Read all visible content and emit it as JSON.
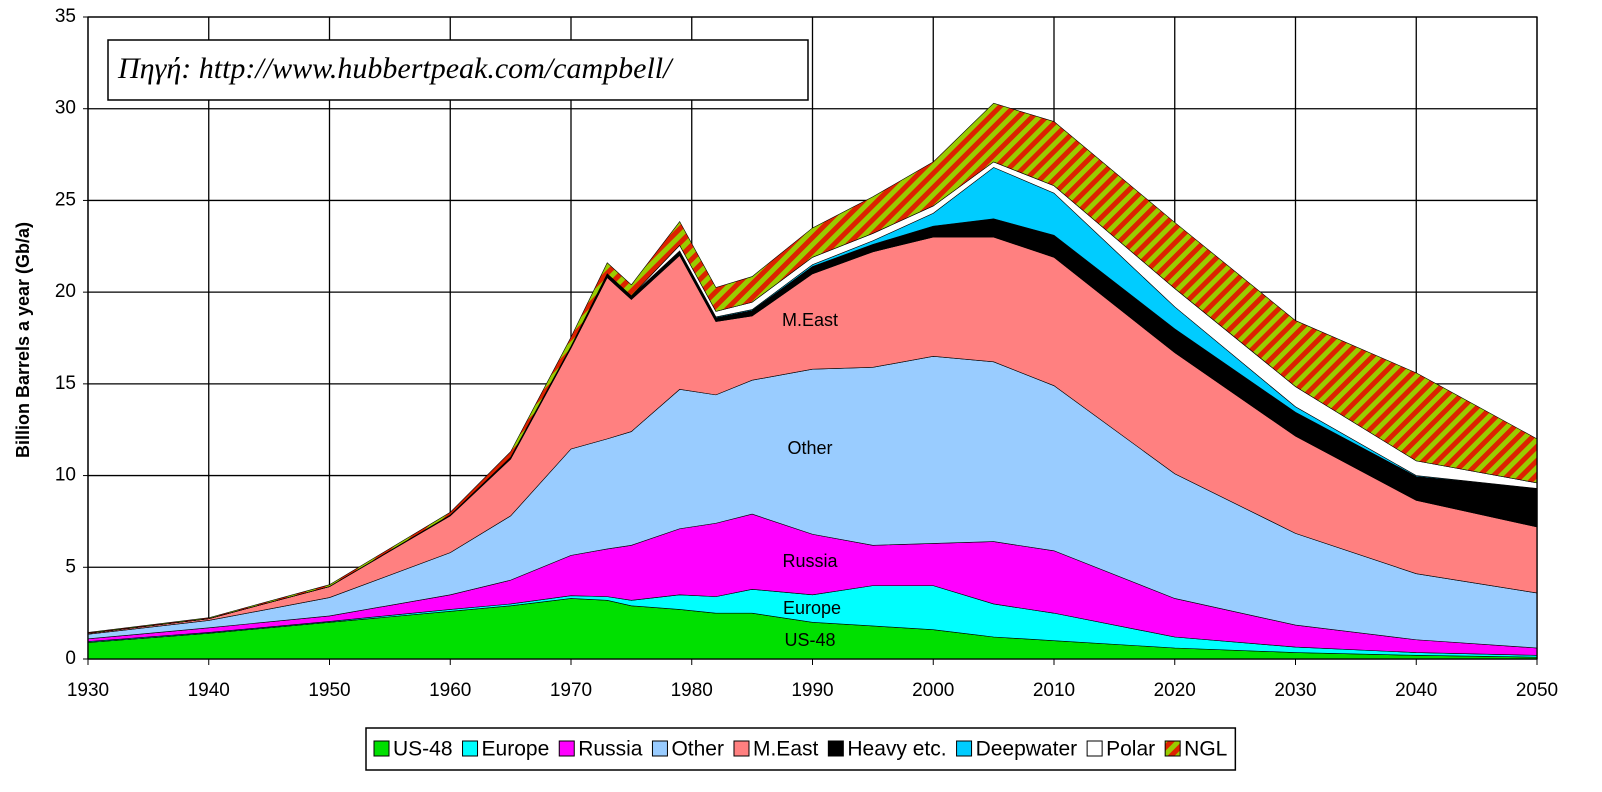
{
  "chart_data": {
    "type": "stacked-area",
    "annotation": "Πηγή: http://www.hubbertpeak.com/campbell/",
    "y_label": "Billion Barrels a year (Gb/a)",
    "x": [
      1930,
      1940,
      1950,
      1960,
      1965,
      1970,
      1973,
      1975,
      1979,
      1982,
      1985,
      1990,
      1995,
      2000,
      2005,
      2010,
      2020,
      2030,
      2040,
      2050
    ],
    "series": [
      {
        "name": "US-48",
        "color": "#00e000",
        "values": [
          0.9,
          1.4,
          2.0,
          2.6,
          2.9,
          3.3,
          3.2,
          2.9,
          2.7,
          2.5,
          2.5,
          2.0,
          1.8,
          1.6,
          1.2,
          1.0,
          0.6,
          0.35,
          0.2,
          0.1
        ]
      },
      {
        "name": "Europe",
        "color": "#00ffff",
        "values": [
          0.05,
          0.05,
          0.05,
          0.1,
          0.1,
          0.15,
          0.2,
          0.3,
          0.8,
          0.9,
          1.3,
          1.5,
          2.2,
          2.4,
          1.8,
          1.5,
          0.6,
          0.3,
          0.15,
          0.1
        ]
      },
      {
        "name": "Russia",
        "color": "#ff00ff",
        "values": [
          0.15,
          0.25,
          0.3,
          0.8,
          1.3,
          2.2,
          2.6,
          3.0,
          3.6,
          4.0,
          4.1,
          3.3,
          2.2,
          2.3,
          3.4,
          3.4,
          2.1,
          1.2,
          0.7,
          0.4
        ]
      },
      {
        "name": "Other",
        "color": "#99ccff",
        "values": [
          0.25,
          0.4,
          1.0,
          2.3,
          3.5,
          5.8,
          6.0,
          6.2,
          7.6,
          7.0,
          7.3,
          9.0,
          9.7,
          10.2,
          9.8,
          9.0,
          6.8,
          5.0,
          3.6,
          3.0
        ]
      },
      {
        "name": "M.East",
        "color": "#ff8080",
        "values": [
          0.05,
          0.1,
          0.6,
          2.0,
          3.1,
          5.5,
          8.8,
          7.2,
          7.3,
          4.0,
          3.5,
          5.2,
          6.3,
          6.5,
          6.8,
          7.0,
          6.6,
          5.3,
          4.0,
          3.6
        ]
      },
      {
        "name": "Heavy etc.",
        "color": "#000000",
        "values": [
          0,
          0,
          0,
          0.05,
          0.1,
          0.1,
          0.2,
          0.2,
          0.2,
          0.2,
          0.3,
          0.4,
          0.4,
          0.6,
          1.0,
          1.2,
          1.3,
          1.3,
          1.3,
          2.1
        ]
      },
      {
        "name": "Deepwater",
        "color": "#00ccff",
        "values": [
          0,
          0,
          0,
          0,
          0,
          0,
          0,
          0,
          0.05,
          0.05,
          0.05,
          0.1,
          0.2,
          0.7,
          2.8,
          2.3,
          1.2,
          0.3,
          0.05,
          0
        ]
      },
      {
        "name": "Polar",
        "color": "#ffffff",
        "values": [
          0,
          0,
          0,
          0,
          0,
          0,
          0,
          0,
          0.3,
          0.3,
          0.4,
          0.4,
          0.4,
          0.4,
          0.3,
          0.4,
          1.0,
          1.1,
          0.8,
          0.3
        ]
      },
      {
        "name": "NGL",
        "color": "#99cc00",
        "hatch": "#dd2200",
        "values": [
          0.05,
          0.05,
          0.1,
          0.15,
          0.3,
          0.5,
          0.6,
          0.6,
          1.3,
          1.3,
          1.4,
          1.6,
          2.0,
          2.4,
          3.2,
          3.5,
          3.6,
          3.6,
          4.8,
          2.4
        ]
      }
    ],
    "area_labels": [
      "M.East",
      "Other",
      "Russia",
      "Europe",
      "US-48"
    ],
    "xlim": [
      1930,
      2050
    ],
    "xticks": [
      1930,
      1940,
      1950,
      1960,
      1970,
      1980,
      1990,
      2000,
      2010,
      2020,
      2030,
      2040,
      2050
    ],
    "ylim": [
      0,
      35
    ],
    "yticks": [
      0,
      5,
      10,
      15,
      20,
      25,
      30,
      35
    ],
    "grid": true,
    "legend": "bottom"
  }
}
